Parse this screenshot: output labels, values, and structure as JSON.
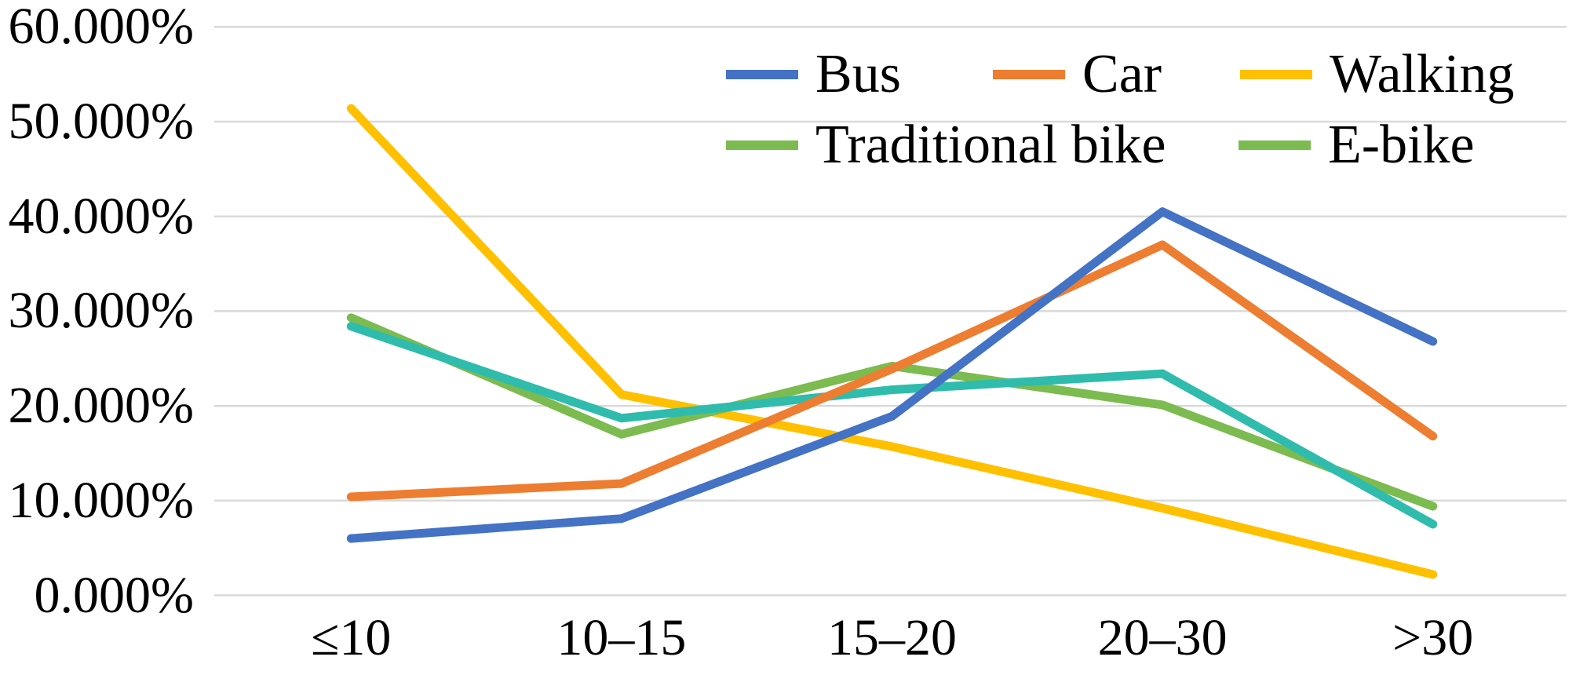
{
  "figure": {
    "background": "#FFFFFF",
    "text_color": "#000000",
    "gridline_color": "#D9D9D9"
  },
  "chart_data": {
    "type": "line",
    "title": "",
    "xlabel": "",
    "ylabel": "",
    "categories": [
      "≤10",
      "10–15",
      "15–20",
      "20–30",
      ">30"
    ],
    "series": [
      {
        "name": "Bus",
        "color": "#4472C4",
        "legend_color": "#4472C4",
        "values": [
          6.0,
          8.1,
          18.9,
          40.5,
          26.8
        ]
      },
      {
        "name": "Car",
        "color": "#ED7D31",
        "legend_color": "#ED7D31",
        "values": [
          10.4,
          11.8,
          23.9,
          37.0,
          16.8
        ]
      },
      {
        "name": "Walking",
        "color": "#FFC000",
        "legend_color": "#FFC000",
        "values": [
          51.4,
          21.2,
          15.7,
          9.2,
          2.2
        ]
      },
      {
        "name": "Traditional bike",
        "color": "#7CBB4F",
        "legend_color": "#7CBB4F",
        "values": [
          29.3,
          17.0,
          24.2,
          20.1,
          9.4
        ]
      },
      {
        "name": "E-bike",
        "color": "#2FBCAC",
        "legend_color": "#7CBB4F",
        "values": [
          28.4,
          18.7,
          21.7,
          23.4,
          7.5
        ]
      }
    ],
    "y_ticks": [
      "0.000%",
      "10.000%",
      "20.000%",
      "30.000%",
      "40.000%",
      "50.000%",
      "60.000%"
    ],
    "ylim": [
      0,
      60
    ],
    "y_tick_step": 10,
    "grid": true,
    "legend_position": "top-right",
    "legend_rows": [
      [
        "Bus",
        "Car",
        "Walking"
      ],
      [
        "Traditional bike",
        "E-bike"
      ]
    ]
  }
}
